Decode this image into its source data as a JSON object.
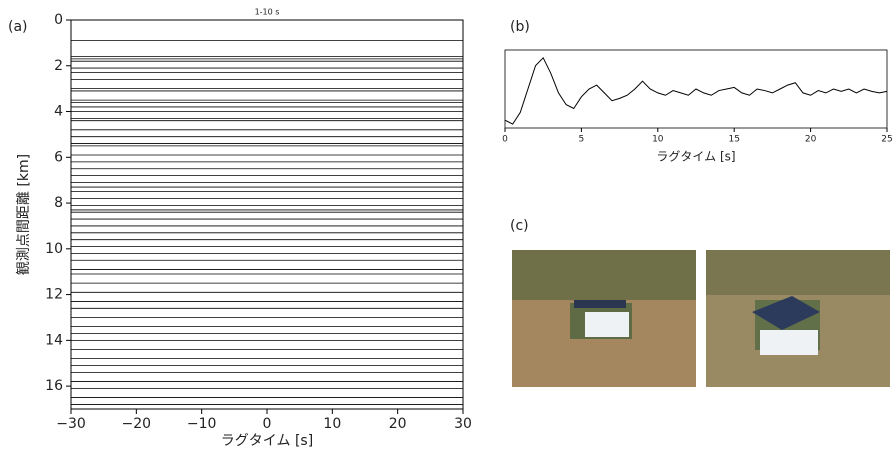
{
  "chart_data": [
    {
      "type": "record_section",
      "panel_label": "(a)",
      "title": "1-10 s",
      "x_label": "ラグタイム [s]",
      "y_label": "観測点間距離 [km]",
      "xlim": [
        -30,
        30
      ],
      "xticks": [
        {
          "value": -30,
          "label": "−30"
        },
        {
          "value": -20,
          "label": "−20"
        },
        {
          "value": -10,
          "label": "−10"
        },
        0,
        10,
        20,
        30
      ],
      "ylim": [
        0,
        17
      ],
      "yticks": [
        0,
        2,
        4,
        6,
        8,
        10,
        12,
        14,
        16
      ],
      "color": "#000000",
      "offsets": [
        0.9,
        1.6,
        1.7,
        1.8,
        2.1,
        2.3,
        2.6,
        3.0,
        3.1,
        3.5,
        3.6,
        3.8,
        4.0,
        4.3,
        4.4,
        4.8,
        5.1,
        5.4,
        5.5,
        5.9,
        6.2,
        6.5,
        6.8,
        7.1,
        7.3,
        7.5,
        7.8,
        8.1,
        8.3,
        8.4,
        8.7,
        9.0,
        9.3,
        9.6,
        9.9,
        10.2,
        10.5,
        10.9,
        11.1,
        11.5,
        11.9,
        12.3,
        12.6,
        13.0,
        13.4,
        13.7,
        14.0,
        14.4,
        14.8,
        15.1,
        15.4,
        15.8,
        16.1,
        16.5,
        16.8
      ]
    },
    {
      "type": "line",
      "panel_label": "(b)",
      "x_label": "ラグタイム [s]",
      "xlim": [
        0,
        25
      ],
      "xticks": [
        0,
        5,
        10,
        15,
        20,
        25
      ],
      "ylim": [
        0,
        1
      ],
      "color": "#000000",
      "x": [
        0,
        0.5,
        1,
        1.5,
        2,
        2.5,
        3,
        3.5,
        4,
        4.5,
        5,
        5.5,
        6,
        6.5,
        7,
        7.5,
        8,
        8.5,
        9,
        9.5,
        10,
        10.5,
        11,
        11.5,
        12,
        12.5,
        13,
        13.5,
        14,
        14.5,
        15,
        15.5,
        16,
        16.5,
        17,
        17.5,
        18,
        18.5,
        19,
        19.5,
        20,
        20.5,
        21,
        21.5,
        22,
        22.5,
        23,
        23.5,
        24,
        24.5,
        25
      ],
      "values": [
        0.1,
        0.05,
        0.2,
        0.5,
        0.8,
        0.9,
        0.7,
        0.45,
        0.3,
        0.25,
        0.4,
        0.5,
        0.55,
        0.45,
        0.35,
        0.38,
        0.42,
        0.5,
        0.6,
        0.5,
        0.45,
        0.42,
        0.48,
        0.45,
        0.42,
        0.5,
        0.45,
        0.42,
        0.48,
        0.5,
        0.52,
        0.45,
        0.42,
        0.5,
        0.48,
        0.45,
        0.5,
        0.55,
        0.58,
        0.45,
        0.42,
        0.48,
        0.45,
        0.5,
        0.47,
        0.5,
        0.45,
        0.5,
        0.47,
        0.45,
        0.47
      ]
    }
  ],
  "photos": {
    "label": "(c)"
  }
}
